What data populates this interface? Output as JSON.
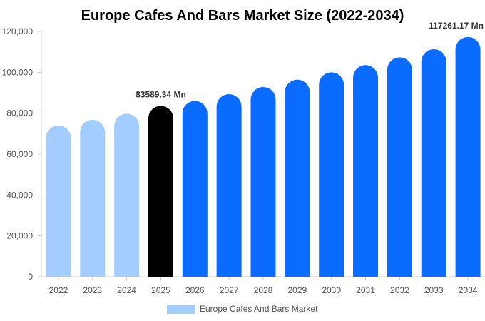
{
  "chart_data": {
    "type": "bar",
    "title": "Europe Cafes And Bars Market Size (2022-2034)",
    "xlabel": "",
    "ylabel": "",
    "categories": [
      "2022",
      "2023",
      "2024",
      "2025",
      "2026",
      "2027",
      "2028",
      "2029",
      "2030",
      "2031",
      "2032",
      "2033",
      "2034"
    ],
    "series": [
      {
        "name": "Europe Cafes And Bars Market",
        "values": [
          74000,
          76800,
          79800,
          83589.34,
          86000,
          89300,
          92800,
          96400,
          100000,
          103500,
          107300,
          111300,
          117261.17
        ]
      }
    ],
    "ylim": [
      0,
      120000
    ],
    "yticks": [
      "0",
      "20,000",
      "40,000",
      "60,000",
      "80,000",
      "100,000",
      "120,000"
    ],
    "data_labels": [
      {
        "category": "2025",
        "text": "83589.34 Mn"
      },
      {
        "category": "2034",
        "text": "117261.17 Mn"
      }
    ],
    "legend": {
      "placement": "bottom-center",
      "label": "Europe Cafes And Bars Market"
    },
    "colors": {
      "historical": "#a3cdfc",
      "current": "#000000",
      "forecast": "#0a6cff",
      "axis": "#cccccc",
      "tick_text": "#555555"
    },
    "grid": false
  }
}
